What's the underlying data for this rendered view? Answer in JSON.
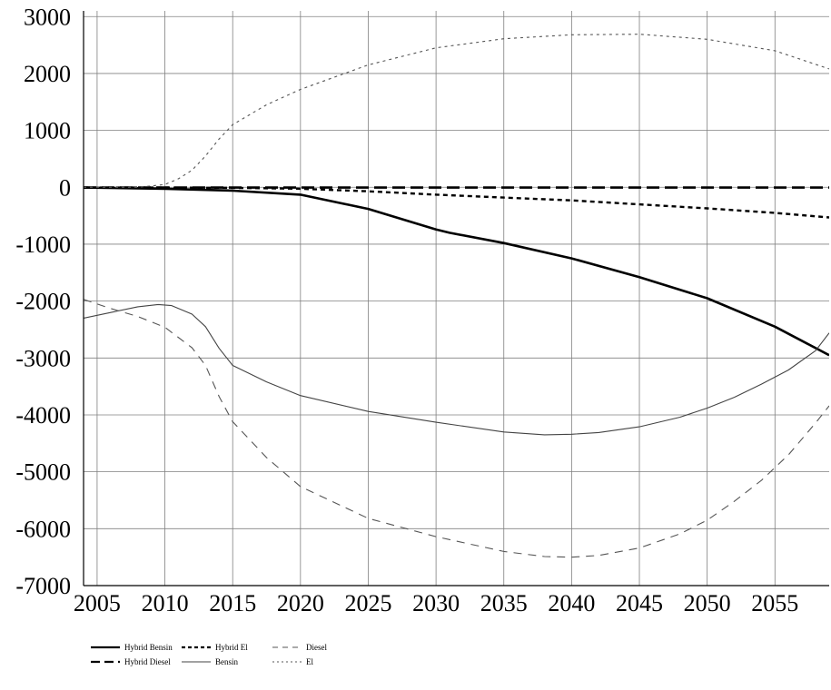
{
  "chart_data": {
    "type": "line",
    "xlim": [
      2004,
      2059
    ],
    "ylim": [
      -7000,
      3100
    ],
    "xticks": [
      2005,
      2010,
      2015,
      2020,
      2025,
      2030,
      2035,
      2040,
      2045,
      2050,
      2055
    ],
    "yticks": [
      3000,
      2000,
      1000,
      0,
      -1000,
      -2000,
      -3000,
      -4000,
      -5000,
      -6000,
      -7000
    ],
    "xtick_labels": [
      "2005",
      "2010",
      "2015",
      "2020",
      "2025",
      "2030",
      "2035",
      "2040",
      "2045",
      "2050",
      "2055"
    ],
    "ytick_labels": [
      "3000",
      "2000",
      "1000",
      "0",
      "-1000",
      "-2000",
      "-3000",
      "-4000",
      "-5000",
      "-6000",
      "-7000"
    ],
    "grid": true,
    "legend_position": "bottom-left",
    "series": [
      {
        "name": "Hybrid Bensin",
        "style": "solid-thick",
        "color": "#000000",
        "x": [
          2004,
          2010,
          2015,
          2020,
          2025,
          2030,
          2031,
          2035,
          2040,
          2045,
          2050,
          2055,
          2059
        ],
        "y": [
          -5,
          -25,
          -60,
          -130,
          -380,
          -740,
          -800,
          -980,
          -1250,
          -1580,
          -1950,
          -2450,
          -2950
        ]
      },
      {
        "name": "Hybrid Diesel",
        "style": "long-dash-thick",
        "color": "#000000",
        "x": [
          2004,
          2010,
          2020,
          2030,
          2040,
          2050,
          2059
        ],
        "y": [
          -5,
          -5,
          -5,
          -5,
          -5,
          -5,
          -5
        ]
      },
      {
        "name": "Hybrid El",
        "style": "short-dash-thick",
        "color": "#000000",
        "x": [
          2004,
          2010,
          2015,
          2020,
          2025,
          2030,
          2035,
          2040,
          2045,
          2050,
          2055,
          2059
        ],
        "y": [
          -5,
          -5,
          -10,
          -25,
          -70,
          -130,
          -180,
          -230,
          -300,
          -370,
          -450,
          -530
        ]
      },
      {
        "name": "Bensin",
        "style": "solid-thin",
        "color": "#444444",
        "x": [
          2004,
          2006,
          2008,
          2009.5,
          2010.5,
          2012,
          2013,
          2014,
          2015,
          2017.5,
          2020,
          2025,
          2030,
          2035,
          2038,
          2040,
          2042,
          2045,
          2048,
          2050,
          2052,
          2054,
          2056,
          2058,
          2059
        ],
        "y": [
          -2300,
          -2200,
          -2100,
          -2060,
          -2080,
          -2230,
          -2450,
          -2830,
          -3130,
          -3420,
          -3660,
          -3940,
          -4130,
          -4300,
          -4350,
          -4340,
          -4310,
          -4210,
          -4040,
          -3880,
          -3690,
          -3460,
          -3210,
          -2870,
          -2560
        ]
      },
      {
        "name": "Diesel",
        "style": "dash-thin",
        "color": "#555555",
        "x": [
          2004,
          2006,
          2008,
          2010,
          2012,
          2013,
          2014,
          2015,
          2017.5,
          2020,
          2025,
          2030,
          2035,
          2038,
          2040,
          2042,
          2045,
          2048,
          2050,
          2052,
          2054,
          2056,
          2058,
          2059
        ],
        "y": [
          -1970,
          -2130,
          -2270,
          -2460,
          -2820,
          -3130,
          -3680,
          -4120,
          -4750,
          -5260,
          -5820,
          -6140,
          -6400,
          -6490,
          -6500,
          -6470,
          -6340,
          -6090,
          -5850,
          -5520,
          -5150,
          -4700,
          -4140,
          -3840
        ]
      },
      {
        "name": "El",
        "style": "dot-thin",
        "color": "#555555",
        "x": [
          2004,
          2008,
          2010,
          2011,
          2012,
          2013,
          2014,
          2015,
          2017.5,
          2020,
          2025,
          2030,
          2035,
          2040,
          2045,
          2050,
          2055,
          2059
        ],
        "y": [
          0,
          0,
          50,
          150,
          300,
          550,
          850,
          1100,
          1450,
          1720,
          2150,
          2450,
          2610,
          2680,
          2690,
          2600,
          2400,
          2080
        ]
      }
    ]
  }
}
